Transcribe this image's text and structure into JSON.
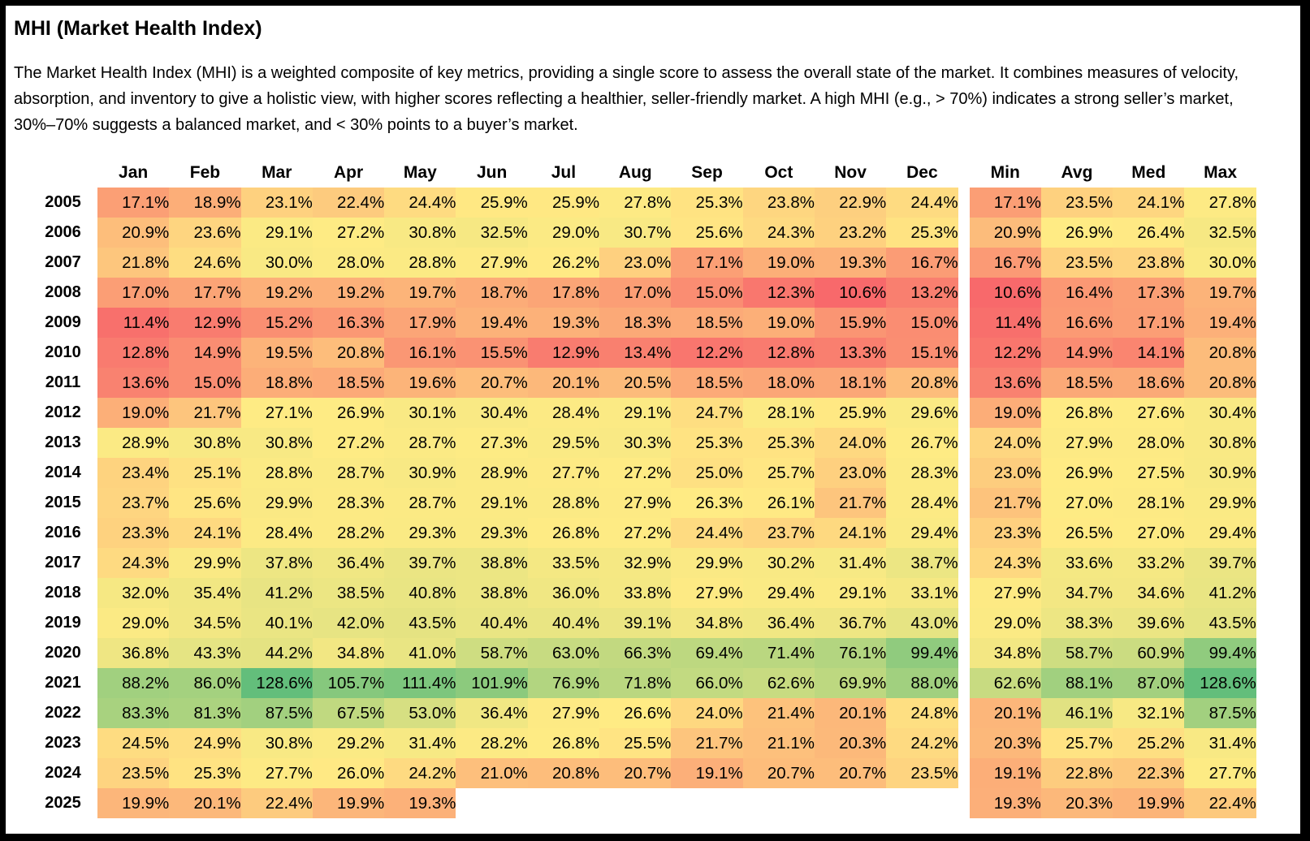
{
  "title": "MHI (Market Health Index)",
  "description": "The Market Health Index (MHI) is a weighted composite of key metrics, providing a single score to assess the overall state of the market. It combines measures of velocity, absorption, and inventory to give a holistic view, with higher scores reflecting a healthier, seller-friendly market. A high MHI (e.g., > 70%) indicates a strong seller’s market, 30%–70% suggests a balanced market, and < 30% points to a buyer’s market.",
  "colors": {
    "low": "#F8696B",
    "mid": "#FFEB84",
    "high": "#63BE7B"
  },
  "chart_data": {
    "type": "heatmap",
    "color_scale": "red-yellow-green",
    "unit": "%",
    "columns": [
      "Jan",
      "Feb",
      "Mar",
      "Apr",
      "May",
      "Jun",
      "Jul",
      "Aug",
      "Sep",
      "Oct",
      "Nov",
      "Dec"
    ],
    "stat_columns": [
      "Min",
      "Avg",
      "Med",
      "Max"
    ],
    "rows": [
      {
        "year": "2005",
        "months": [
          "17.1%",
          "18.9%",
          "23.1%",
          "22.4%",
          "24.4%",
          "25.9%",
          "25.9%",
          "27.8%",
          "25.3%",
          "23.8%",
          "22.9%",
          "24.4%"
        ],
        "stats": [
          "17.1%",
          "23.5%",
          "24.1%",
          "27.8%"
        ]
      },
      {
        "year": "2006",
        "months": [
          "20.9%",
          "23.6%",
          "29.1%",
          "27.2%",
          "30.8%",
          "32.5%",
          "29.0%",
          "30.7%",
          "25.6%",
          "24.3%",
          "23.2%",
          "25.3%"
        ],
        "stats": [
          "20.9%",
          "26.9%",
          "26.4%",
          "32.5%"
        ]
      },
      {
        "year": "2007",
        "months": [
          "21.8%",
          "24.6%",
          "30.0%",
          "28.0%",
          "28.8%",
          "27.9%",
          "26.2%",
          "23.0%",
          "17.1%",
          "19.0%",
          "19.3%",
          "16.7%"
        ],
        "stats": [
          "16.7%",
          "23.5%",
          "23.8%",
          "30.0%"
        ]
      },
      {
        "year": "2008",
        "months": [
          "17.0%",
          "17.7%",
          "19.2%",
          "19.2%",
          "19.7%",
          "18.7%",
          "17.8%",
          "17.0%",
          "15.0%",
          "12.3%",
          "10.6%",
          "13.2%"
        ],
        "stats": [
          "10.6%",
          "16.4%",
          "17.3%",
          "19.7%"
        ]
      },
      {
        "year": "2009",
        "months": [
          "11.4%",
          "12.9%",
          "15.2%",
          "16.3%",
          "17.9%",
          "19.4%",
          "19.3%",
          "18.3%",
          "18.5%",
          "19.0%",
          "15.9%",
          "15.0%"
        ],
        "stats": [
          "11.4%",
          "16.6%",
          "17.1%",
          "19.4%"
        ]
      },
      {
        "year": "2010",
        "months": [
          "12.8%",
          "14.9%",
          "19.5%",
          "20.8%",
          "16.1%",
          "15.5%",
          "12.9%",
          "13.4%",
          "12.2%",
          "12.8%",
          "13.3%",
          "15.1%"
        ],
        "stats": [
          "12.2%",
          "14.9%",
          "14.1%",
          "20.8%"
        ]
      },
      {
        "year": "2011",
        "months": [
          "13.6%",
          "15.0%",
          "18.8%",
          "18.5%",
          "19.6%",
          "20.7%",
          "20.1%",
          "20.5%",
          "18.5%",
          "18.0%",
          "18.1%",
          "20.8%"
        ],
        "stats": [
          "13.6%",
          "18.5%",
          "18.6%",
          "20.8%"
        ]
      },
      {
        "year": "2012",
        "months": [
          "19.0%",
          "21.7%",
          "27.1%",
          "26.9%",
          "30.1%",
          "30.4%",
          "28.4%",
          "29.1%",
          "24.7%",
          "28.1%",
          "25.9%",
          "29.6%"
        ],
        "stats": [
          "19.0%",
          "26.8%",
          "27.6%",
          "30.4%"
        ]
      },
      {
        "year": "2013",
        "months": [
          "28.9%",
          "30.8%",
          "30.8%",
          "27.2%",
          "28.7%",
          "27.3%",
          "29.5%",
          "30.3%",
          "25.3%",
          "25.3%",
          "24.0%",
          "26.7%"
        ],
        "stats": [
          "24.0%",
          "27.9%",
          "28.0%",
          "30.8%"
        ]
      },
      {
        "year": "2014",
        "months": [
          "23.4%",
          "25.1%",
          "28.8%",
          "28.7%",
          "30.9%",
          "28.9%",
          "27.7%",
          "27.2%",
          "25.0%",
          "25.7%",
          "23.0%",
          "28.3%"
        ],
        "stats": [
          "23.0%",
          "26.9%",
          "27.5%",
          "30.9%"
        ]
      },
      {
        "year": "2015",
        "months": [
          "23.7%",
          "25.6%",
          "29.9%",
          "28.3%",
          "28.7%",
          "29.1%",
          "28.8%",
          "27.9%",
          "26.3%",
          "26.1%",
          "21.7%",
          "28.4%"
        ],
        "stats": [
          "21.7%",
          "27.0%",
          "28.1%",
          "29.9%"
        ]
      },
      {
        "year": "2016",
        "months": [
          "23.3%",
          "24.1%",
          "28.4%",
          "28.2%",
          "29.3%",
          "29.3%",
          "26.8%",
          "27.2%",
          "24.4%",
          "23.7%",
          "24.1%",
          "29.4%"
        ],
        "stats": [
          "23.3%",
          "26.5%",
          "27.0%",
          "29.4%"
        ]
      },
      {
        "year": "2017",
        "months": [
          "24.3%",
          "29.9%",
          "37.8%",
          "36.4%",
          "39.7%",
          "38.8%",
          "33.5%",
          "32.9%",
          "29.9%",
          "30.2%",
          "31.4%",
          "38.7%"
        ],
        "stats": [
          "24.3%",
          "33.6%",
          "33.2%",
          "39.7%"
        ]
      },
      {
        "year": "2018",
        "months": [
          "32.0%",
          "35.4%",
          "41.2%",
          "38.5%",
          "40.8%",
          "38.8%",
          "36.0%",
          "33.8%",
          "27.9%",
          "29.4%",
          "29.1%",
          "33.1%"
        ],
        "stats": [
          "27.9%",
          "34.7%",
          "34.6%",
          "41.2%"
        ]
      },
      {
        "year": "2019",
        "months": [
          "29.0%",
          "34.5%",
          "40.1%",
          "42.0%",
          "43.5%",
          "40.4%",
          "40.4%",
          "39.1%",
          "34.8%",
          "36.4%",
          "36.7%",
          "43.0%"
        ],
        "stats": [
          "29.0%",
          "38.3%",
          "39.6%",
          "43.5%"
        ]
      },
      {
        "year": "2020",
        "months": [
          "36.8%",
          "43.3%",
          "44.2%",
          "34.8%",
          "41.0%",
          "58.7%",
          "63.0%",
          "66.3%",
          "69.4%",
          "71.4%",
          "76.1%",
          "99.4%"
        ],
        "stats": [
          "34.8%",
          "58.7%",
          "60.9%",
          "99.4%"
        ]
      },
      {
        "year": "2021",
        "months": [
          "88.2%",
          "86.0%",
          "128.6%",
          "105.7%",
          "111.4%",
          "101.9%",
          "76.9%",
          "71.8%",
          "66.0%",
          "62.6%",
          "69.9%",
          "88.0%"
        ],
        "stats": [
          "62.6%",
          "88.1%",
          "87.0%",
          "128.6%"
        ]
      },
      {
        "year": "2022",
        "months": [
          "83.3%",
          "81.3%",
          "87.5%",
          "67.5%",
          "53.0%",
          "36.4%",
          "27.9%",
          "26.6%",
          "24.0%",
          "21.4%",
          "20.1%",
          "24.8%"
        ],
        "stats": [
          "20.1%",
          "46.1%",
          "32.1%",
          "87.5%"
        ]
      },
      {
        "year": "2023",
        "months": [
          "24.5%",
          "24.9%",
          "30.8%",
          "29.2%",
          "31.4%",
          "28.2%",
          "26.8%",
          "25.5%",
          "21.7%",
          "21.1%",
          "20.3%",
          "24.2%"
        ],
        "stats": [
          "20.3%",
          "25.7%",
          "25.2%",
          "31.4%"
        ]
      },
      {
        "year": "2024",
        "months": [
          "23.5%",
          "25.3%",
          "27.7%",
          "26.0%",
          "24.2%",
          "21.0%",
          "20.8%",
          "20.7%",
          "19.1%",
          "20.7%",
          "20.7%",
          "23.5%"
        ],
        "stats": [
          "19.1%",
          "22.8%",
          "22.3%",
          "27.7%"
        ]
      },
      {
        "year": "2025",
        "months": [
          "19.9%",
          "20.1%",
          "22.4%",
          "19.9%",
          "19.3%",
          "",
          "",
          "",
          "",
          "",
          "",
          ""
        ],
        "stats": [
          "19.3%",
          "20.3%",
          "19.9%",
          "22.4%"
        ]
      }
    ]
  }
}
